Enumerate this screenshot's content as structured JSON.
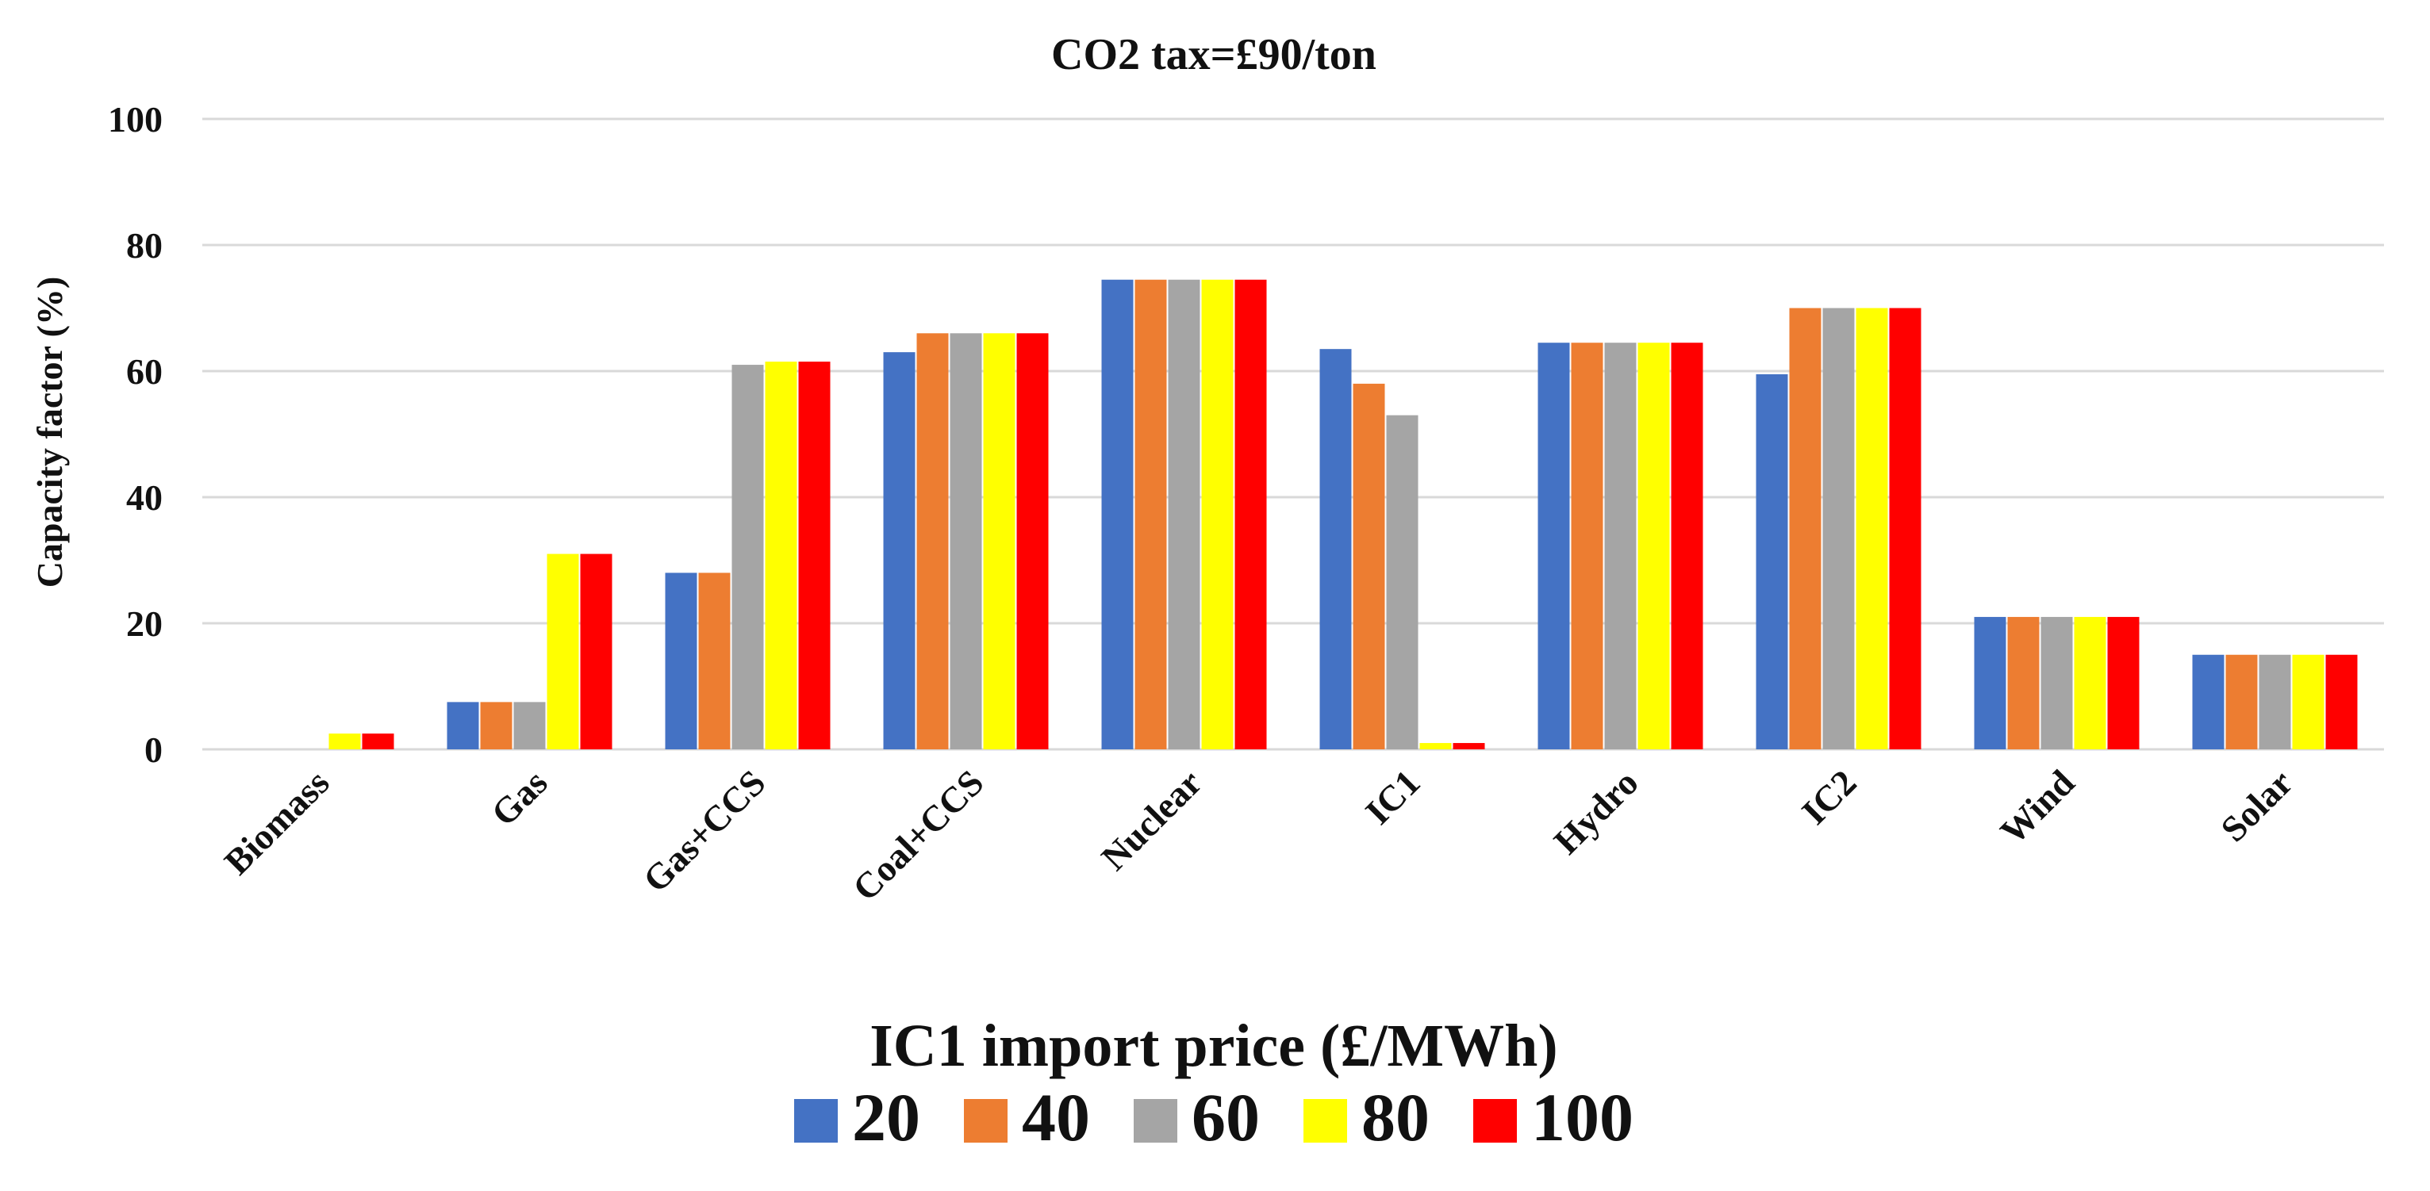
{
  "chart_data": {
    "type": "bar",
    "title": "CO2 tax=£90/ton",
    "ylabel": "Capacity factor (%)",
    "xlabel": "IC1 import price (£/MWh)",
    "ylim": [
      0,
      100
    ],
    "yticks": [
      0,
      20,
      40,
      60,
      80,
      100
    ],
    "grid": true,
    "legend_position": "bottom",
    "categories": [
      "Biomass",
      "Gas",
      "Gas+CCS",
      "Coal+CCS",
      "Nuclear",
      "IC1",
      "Hydro",
      "IC2",
      "Wind",
      "Solar"
    ],
    "series": [
      {
        "name": "20",
        "color": "#4472C4",
        "values": [
          0,
          7.5,
          28,
          63,
          74.5,
          63.5,
          64.5,
          59.5,
          21,
          15
        ]
      },
      {
        "name": "40",
        "color": "#ED7D31",
        "values": [
          0,
          7.5,
          28,
          66,
          74.5,
          58,
          64.5,
          70,
          21,
          15
        ]
      },
      {
        "name": "60",
        "color": "#A5A5A5",
        "values": [
          0,
          7.5,
          61,
          66,
          74.5,
          53,
          64.5,
          70,
          21,
          15
        ]
      },
      {
        "name": "80",
        "color": "#FFFF00",
        "values": [
          2.5,
          31,
          61.5,
          66,
          74.5,
          1,
          64.5,
          70,
          21,
          15
        ]
      },
      {
        "name": "100",
        "color": "#FF0000",
        "values": [
          2.5,
          31,
          61.5,
          66,
          74.5,
          1,
          64.5,
          70,
          21,
          15
        ]
      }
    ]
  }
}
